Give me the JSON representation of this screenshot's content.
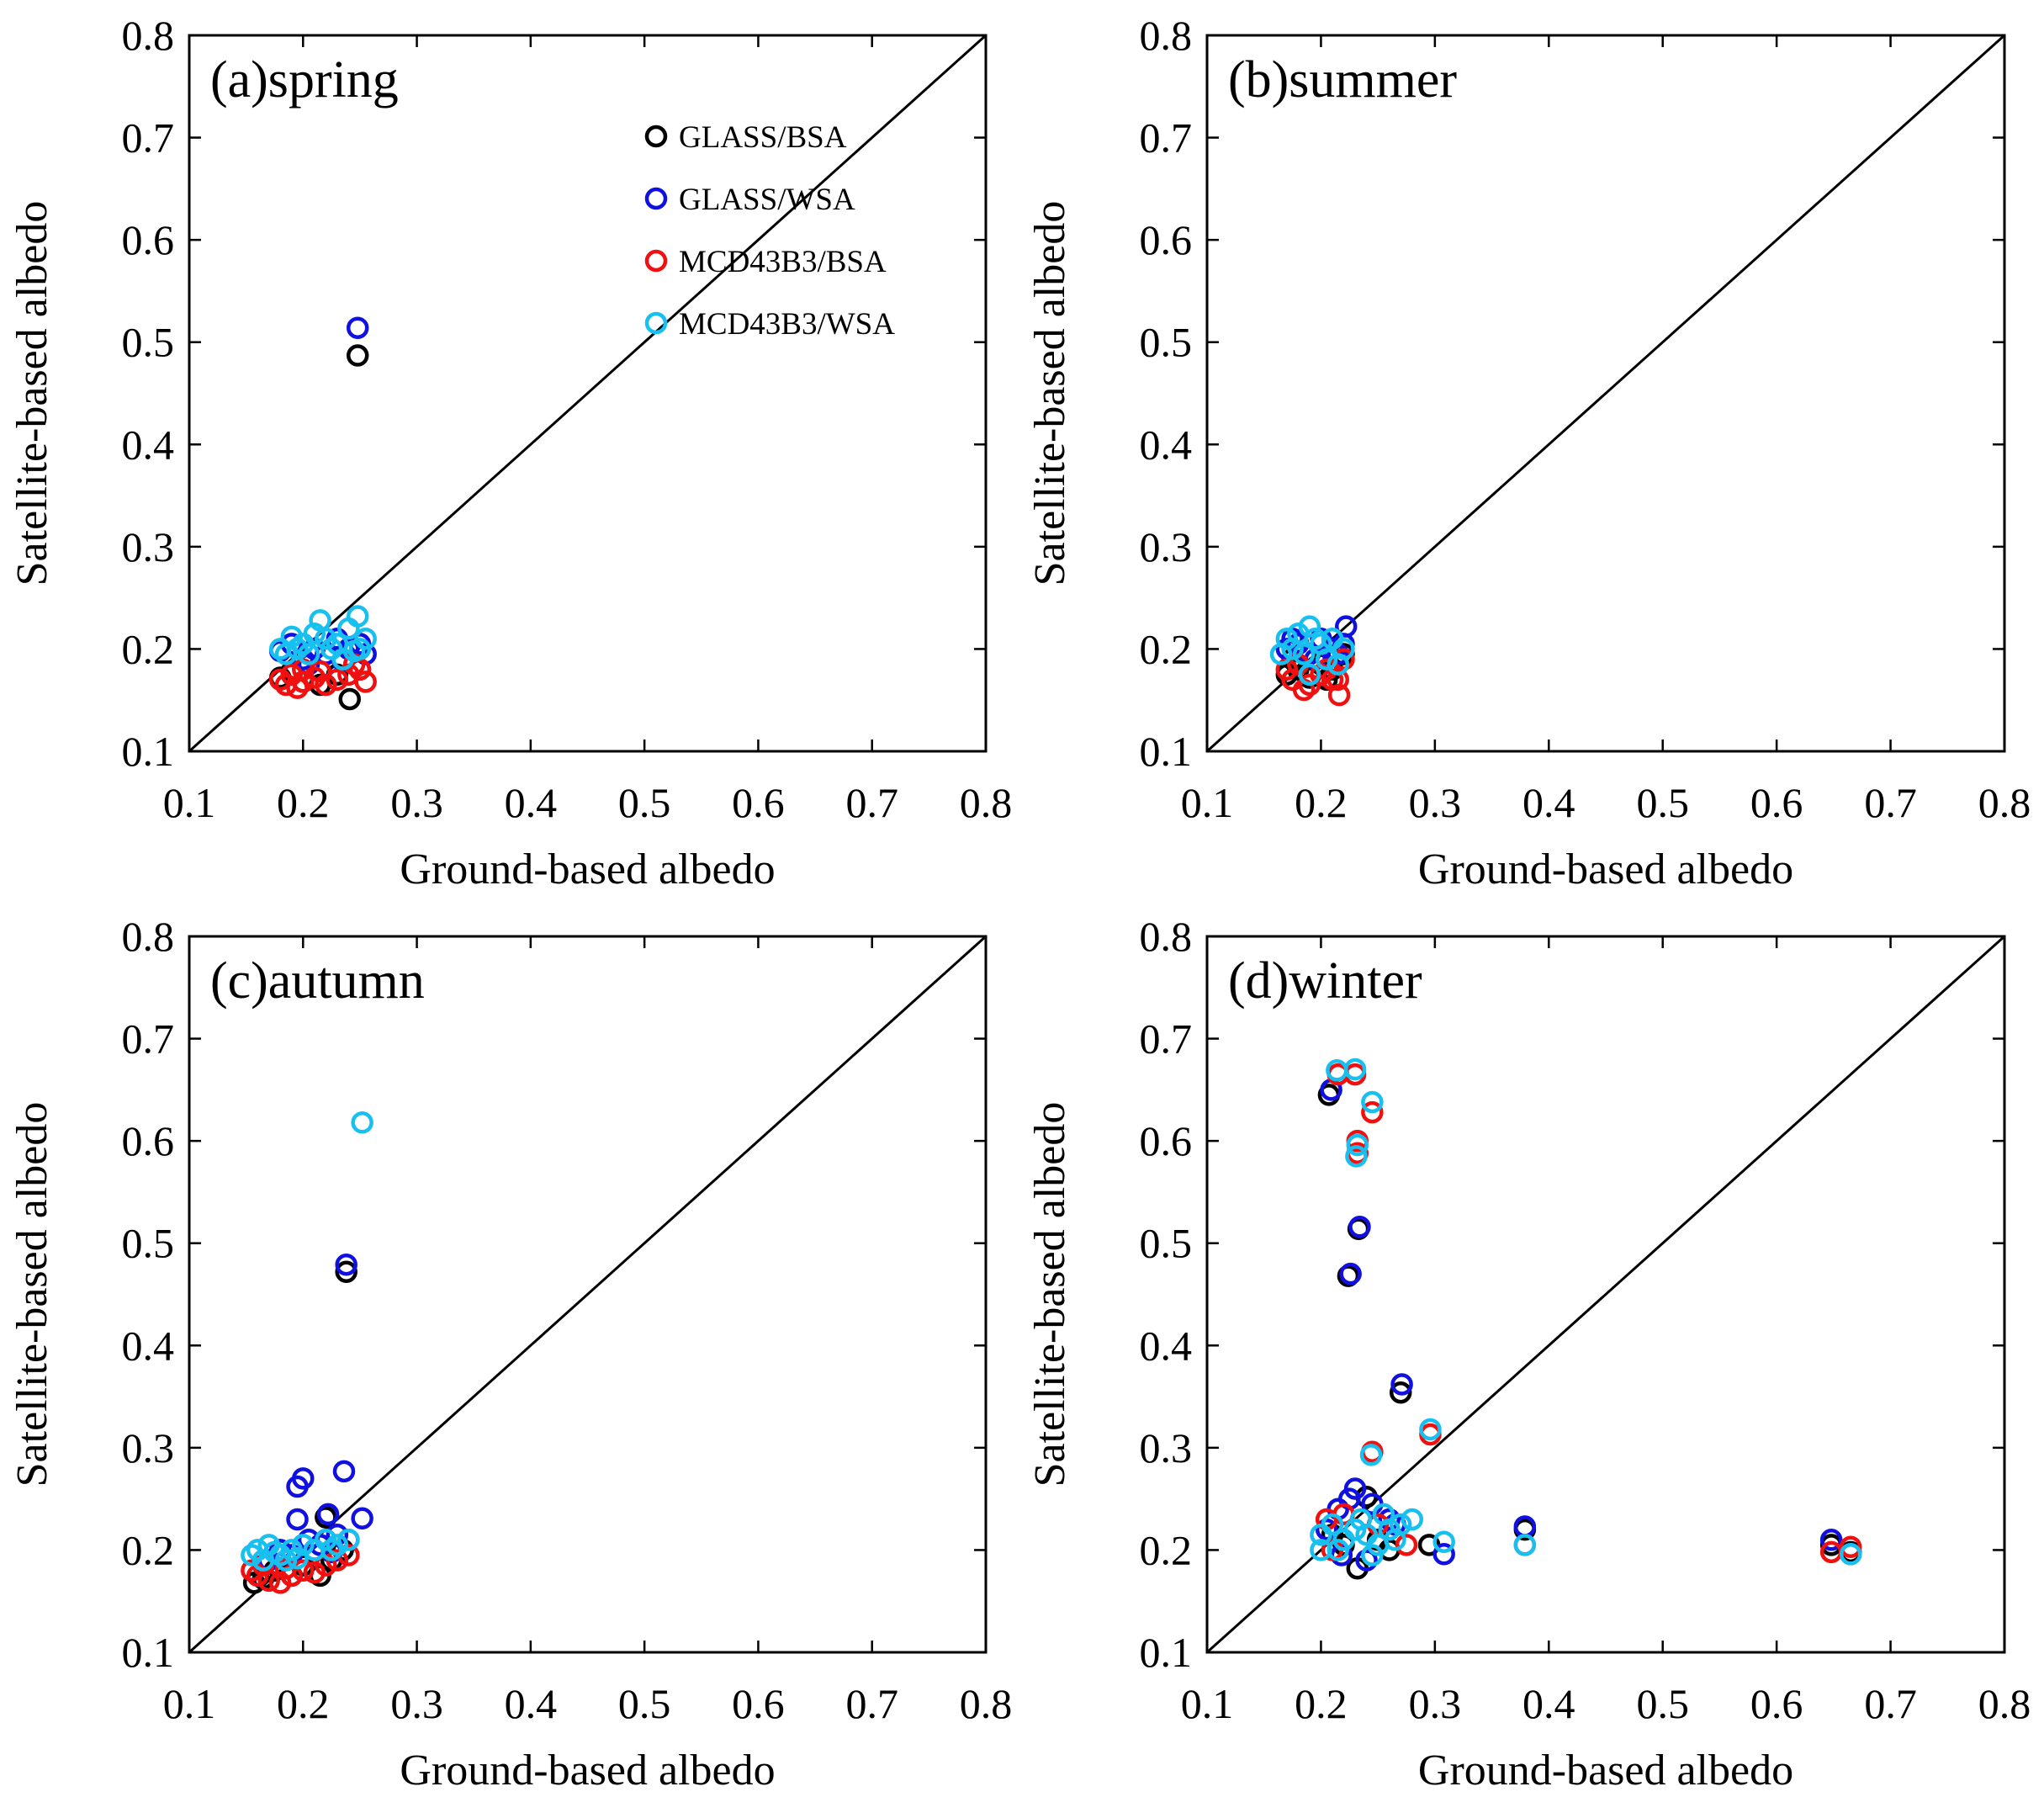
{
  "chart_data": [
    {
      "type": "scatter",
      "title": "(a)spring",
      "xlabel": "Ground-based albedo",
      "ylabel": "Satellite-based albedo",
      "xlim": [
        0.1,
        0.8
      ],
      "ylim": [
        0.1,
        0.8
      ],
      "ticks": [
        "0.1",
        "0.2",
        "0.3",
        "0.4",
        "0.5",
        "0.6",
        "0.7",
        "0.8"
      ],
      "one_to_one_line": true,
      "legend": [
        {
          "name": "GLASS/BSA",
          "color": "#000000"
        },
        {
          "name": "GLASS/WSA",
          "color": "#1010e0"
        },
        {
          "name": "MCD43B3/BSA",
          "color": "#f01010"
        },
        {
          "name": "MCD43B3/WSA",
          "color": "#18c0f0"
        }
      ],
      "series": [
        {
          "name": "GLASS/BSA",
          "color": "#000000",
          "points": [
            [
              0.248,
              0.487
            ],
            [
              0.241,
              0.151
            ],
            [
              0.18,
              0.172
            ],
            [
              0.2,
              0.168
            ],
            [
              0.215,
              0.165
            ],
            [
              0.23,
              0.175
            ],
            [
              0.25,
              0.18
            ],
            [
              0.19,
              0.178
            ]
          ]
        },
        {
          "name": "GLASS/WSA",
          "color": "#1010e0",
          "points": [
            [
              0.248,
              0.514
            ],
            [
              0.18,
              0.198
            ],
            [
              0.19,
              0.205
            ],
            [
              0.2,
              0.19
            ],
            [
              0.21,
              0.2
            ],
            [
              0.22,
              0.195
            ],
            [
              0.23,
              0.21
            ],
            [
              0.24,
              0.2
            ],
            [
              0.25,
              0.205
            ],
            [
              0.255,
              0.195
            ],
            [
              0.205,
              0.185
            ],
            [
              0.235,
              0.188
            ]
          ]
        },
        {
          "name": "MCD43B3/BSA",
          "color": "#f01010",
          "points": [
            [
              0.18,
              0.17
            ],
            [
              0.185,
              0.165
            ],
            [
              0.19,
              0.175
            ],
            [
              0.2,
              0.168
            ],
            [
              0.21,
              0.172
            ],
            [
              0.22,
              0.165
            ],
            [
              0.23,
              0.17
            ],
            [
              0.24,
              0.175
            ],
            [
              0.25,
              0.18
            ],
            [
              0.255,
              0.168
            ],
            [
              0.195,
              0.162
            ],
            [
              0.215,
              0.178
            ],
            [
              0.245,
              0.185
            ],
            [
              0.2,
              0.18
            ]
          ]
        },
        {
          "name": "MCD43B3/WSA",
          "color": "#18c0f0",
          "points": [
            [
              0.18,
              0.2
            ],
            [
              0.19,
              0.212
            ],
            [
              0.2,
              0.205
            ],
            [
              0.21,
              0.215
            ],
            [
              0.215,
              0.228
            ],
            [
              0.22,
              0.21
            ],
            [
              0.23,
              0.205
            ],
            [
              0.24,
              0.22
            ],
            [
              0.248,
              0.232
            ],
            [
              0.255,
              0.21
            ],
            [
              0.185,
              0.195
            ],
            [
              0.205,
              0.195
            ],
            [
              0.225,
              0.2
            ],
            [
              0.245,
              0.198
            ],
            [
              0.235,
              0.19
            ],
            [
              0.195,
              0.2
            ],
            [
              0.25,
              0.2
            ]
          ]
        }
      ]
    },
    {
      "type": "scatter",
      "title": "(b)summer",
      "xlabel": "Ground-based albedo",
      "ylabel": "Satellite-based albedo",
      "xlim": [
        0.1,
        0.8
      ],
      "ylim": [
        0.1,
        0.8
      ],
      "ticks": [
        "0.1",
        "0.2",
        "0.3",
        "0.4",
        "0.5",
        "0.6",
        "0.7",
        "0.8"
      ],
      "one_to_one_line": true,
      "series": [
        {
          "name": "GLASS/BSA",
          "color": "#000000",
          "points": [
            [
              0.17,
              0.175
            ],
            [
              0.18,
              0.18
            ],
            [
              0.19,
              0.172
            ],
            [
              0.2,
              0.185
            ],
            [
              0.21,
              0.18
            ],
            [
              0.22,
              0.195
            ],
            [
              0.175,
              0.19
            ],
            [
              0.205,
              0.17
            ]
          ]
        },
        {
          "name": "GLASS/WSA",
          "color": "#1010e0",
          "points": [
            [
              0.222,
              0.222
            ],
            [
              0.17,
              0.2
            ],
            [
              0.18,
              0.205
            ],
            [
              0.19,
              0.195
            ],
            [
              0.2,
              0.21
            ],
            [
              0.21,
              0.2
            ],
            [
              0.22,
              0.205
            ],
            [
              0.175,
              0.21
            ],
            [
              0.195,
              0.19
            ],
            [
              0.215,
              0.195
            ]
          ]
        },
        {
          "name": "MCD43B3/BSA",
          "color": "#f01010",
          "points": [
            [
              0.216,
              0.155
            ],
            [
              0.17,
              0.18
            ],
            [
              0.175,
              0.17
            ],
            [
              0.18,
              0.185
            ],
            [
              0.19,
              0.165
            ],
            [
              0.2,
              0.175
            ],
            [
              0.21,
              0.17
            ],
            [
              0.22,
              0.19
            ],
            [
              0.185,
              0.16
            ],
            [
              0.205,
              0.18
            ],
            [
              0.215,
              0.17
            ]
          ]
        },
        {
          "name": "MCD43B3/WSA",
          "color": "#18c0f0",
          "points": [
            [
              0.17,
              0.21
            ],
            [
              0.175,
              0.2
            ],
            [
              0.18,
              0.215
            ],
            [
              0.19,
              0.222
            ],
            [
              0.2,
              0.205
            ],
            [
              0.21,
              0.21
            ],
            [
              0.22,
              0.2
            ],
            [
              0.185,
              0.195
            ],
            [
              0.195,
              0.21
            ],
            [
              0.205,
              0.19
            ],
            [
              0.165,
              0.195
            ],
            [
              0.215,
              0.185
            ],
            [
              0.19,
              0.175
            ]
          ]
        }
      ]
    },
    {
      "type": "scatter",
      "title": "(c)autumn",
      "xlabel": "Ground-based albedo",
      "ylabel": "Satellite-based albedo",
      "xlim": [
        0.1,
        0.8
      ],
      "ylim": [
        0.1,
        0.8
      ],
      "ticks": [
        "0.1",
        "0.2",
        "0.3",
        "0.4",
        "0.5",
        "0.6",
        "0.7",
        "0.8"
      ],
      "one_to_one_line": true,
      "series": [
        {
          "name": "GLASS/BSA",
          "color": "#000000",
          "points": [
            [
              0.238,
              0.472
            ],
            [
              0.157,
              0.168
            ],
            [
              0.165,
              0.172
            ],
            [
              0.175,
              0.18
            ],
            [
              0.19,
              0.175
            ],
            [
              0.2,
              0.185
            ],
            [
              0.215,
              0.175
            ],
            [
              0.225,
              0.19
            ],
            [
              0.235,
              0.2
            ],
            [
              0.22,
              0.232
            ]
          ]
        },
        {
          "name": "GLASS/WSA",
          "color": "#1010e0",
          "points": [
            [
              0.238,
              0.479
            ],
            [
              0.236,
              0.277
            ],
            [
              0.195,
              0.262
            ],
            [
              0.2,
              0.27
            ],
            [
              0.195,
              0.23
            ],
            [
              0.252,
              0.231
            ],
            [
              0.222,
              0.235
            ],
            [
              0.17,
              0.19
            ],
            [
              0.18,
              0.2
            ],
            [
              0.19,
              0.195
            ],
            [
              0.205,
              0.21
            ],
            [
              0.215,
              0.205
            ],
            [
              0.23,
              0.215
            ],
            [
              0.24,
              0.21
            ],
            [
              0.225,
              0.198
            ]
          ]
        },
        {
          "name": "MCD43B3/BSA",
          "color": "#f01010",
          "points": [
            [
              0.155,
              0.18
            ],
            [
              0.16,
              0.175
            ],
            [
              0.17,
              0.17
            ],
            [
              0.18,
              0.168
            ],
            [
              0.19,
              0.175
            ],
            [
              0.2,
              0.18
            ],
            [
              0.21,
              0.178
            ],
            [
              0.22,
              0.185
            ],
            [
              0.23,
              0.19
            ],
            [
              0.24,
              0.195
            ],
            [
              0.165,
              0.185
            ],
            [
              0.185,
              0.182
            ]
          ]
        },
        {
          "name": "MCD43B3/WSA",
          "color": "#18c0f0",
          "points": [
            [
              0.252,
              0.618
            ],
            [
              0.155,
              0.195
            ],
            [
              0.16,
              0.2
            ],
            [
              0.165,
              0.19
            ],
            [
              0.17,
              0.205
            ],
            [
              0.18,
              0.195
            ],
            [
              0.19,
              0.2
            ],
            [
              0.2,
              0.205
            ],
            [
              0.21,
              0.2
            ],
            [
              0.22,
              0.21
            ],
            [
              0.23,
              0.205
            ],
            [
              0.24,
              0.21
            ],
            [
              0.175,
              0.198
            ],
            [
              0.185,
              0.19
            ],
            [
              0.195,
              0.192
            ],
            [
              0.225,
              0.2
            ]
          ]
        }
      ]
    },
    {
      "type": "scatter",
      "title": "(d)winter",
      "xlabel": "Ground-based albedo",
      "ylabel": "Satellite-based albedo",
      "xlim": [
        0.1,
        0.8
      ],
      "ylim": [
        0.1,
        0.8
      ],
      "ticks": [
        "0.1",
        "0.2",
        "0.3",
        "0.4",
        "0.5",
        "0.6",
        "0.7",
        "0.8"
      ],
      "one_to_one_line": true,
      "series": [
        {
          "name": "GLASS/BSA",
          "color": "#000000",
          "points": [
            [
              0.207,
              0.645
            ],
            [
              0.233,
              0.514
            ],
            [
              0.224,
              0.468
            ],
            [
              0.27,
              0.354
            ],
            [
              0.379,
              0.22
            ],
            [
              0.648,
              0.205
            ],
            [
              0.665,
              0.198
            ],
            [
              0.232,
              0.182
            ],
            [
              0.24,
              0.252
            ],
            [
              0.295,
              0.205
            ],
            [
              0.21,
              0.215
            ],
            [
              0.22,
              0.205
            ],
            [
              0.25,
              0.21
            ],
            [
              0.26,
              0.2
            ]
          ]
        },
        {
          "name": "GLASS/WSA",
          "color": "#1010e0",
          "points": [
            [
              0.209,
              0.65
            ],
            [
              0.234,
              0.516
            ],
            [
              0.226,
              0.47
            ],
            [
              0.271,
              0.362
            ],
            [
              0.379,
              0.223
            ],
            [
              0.648,
              0.21
            ],
            [
              0.665,
              0.196
            ],
            [
              0.23,
              0.26
            ],
            [
              0.308,
              0.196
            ],
            [
              0.215,
              0.24
            ],
            [
              0.225,
              0.25
            ],
            [
              0.245,
              0.245
            ],
            [
              0.26,
              0.23
            ],
            [
              0.205,
              0.22
            ],
            [
              0.24,
              0.19
            ],
            [
              0.265,
              0.225
            ],
            [
              0.218,
              0.195
            ]
          ]
        },
        {
          "name": "MCD43B3/BSA",
          "color": "#f01010",
          "points": [
            [
              0.215,
              0.665
            ],
            [
              0.23,
              0.665
            ],
            [
              0.245,
              0.628
            ],
            [
              0.232,
              0.6
            ],
            [
              0.232,
              0.588
            ],
            [
              0.245,
              0.296
            ],
            [
              0.296,
              0.313
            ],
            [
              0.379,
              0.205
            ],
            [
              0.648,
              0.198
            ],
            [
              0.665,
              0.203
            ],
            [
              0.205,
              0.23
            ],
            [
              0.22,
              0.235
            ],
            [
              0.25,
              0.225
            ],
            [
              0.275,
              0.205
            ],
            [
              0.21,
              0.2
            ]
          ]
        },
        {
          "name": "MCD43B3/WSA",
          "color": "#18c0f0",
          "points": [
            [
              0.214,
              0.669
            ],
            [
              0.23,
              0.67
            ],
            [
              0.245,
              0.638
            ],
            [
              0.232,
              0.596
            ],
            [
              0.231,
              0.585
            ],
            [
              0.244,
              0.293
            ],
            [
              0.296,
              0.318
            ],
            [
              0.379,
              0.205
            ],
            [
              0.665,
              0.196
            ],
            [
              0.308,
              0.208
            ],
            [
              0.2,
              0.215
            ],
            [
              0.21,
              0.225
            ],
            [
              0.22,
              0.21
            ],
            [
              0.23,
              0.22
            ],
            [
              0.24,
              0.215
            ],
            [
              0.25,
              0.205
            ],
            [
              0.26,
              0.22
            ],
            [
              0.27,
              0.225
            ],
            [
              0.28,
              0.23
            ],
            [
              0.215,
              0.2
            ],
            [
              0.235,
              0.23
            ],
            [
              0.255,
              0.235
            ],
            [
              0.265,
              0.21
            ],
            [
              0.2,
              0.2
            ],
            [
              0.245,
              0.195
            ]
          ]
        }
      ]
    }
  ]
}
